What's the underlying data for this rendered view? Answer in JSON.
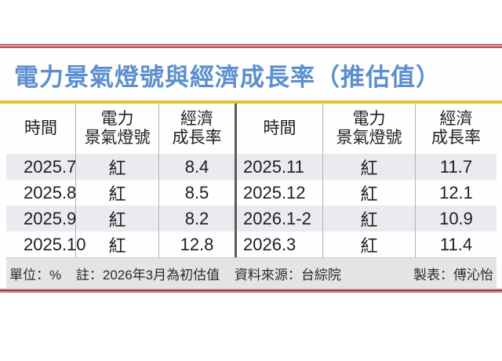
{
  "chart_data": {
    "type": "table",
    "title": "電力景氣燈號與經濟成長率（推估值）",
    "columns": [
      "時間",
      "電力景氣燈號",
      "經濟成長率"
    ],
    "rows": [
      [
        "2025.7",
        "紅",
        "8.4"
      ],
      [
        "2025.8",
        "紅",
        "8.5"
      ],
      [
        "2025.9",
        "紅",
        "8.2"
      ],
      [
        "2025.10",
        "紅",
        "12.8"
      ],
      [
        "2025.11",
        "紅",
        "11.7"
      ],
      [
        "2025.12",
        "紅",
        "12.1"
      ],
      [
        "2026.1-2",
        "紅",
        "10.9"
      ],
      [
        "2026.3",
        "紅",
        "11.4"
      ]
    ],
    "unit": "%",
    "note": "2026年3月為初估值",
    "source": "台綜院",
    "layout": "two side-by-side column groups, rows 0-3 left, rows 4-7 right"
  },
  "table_headers": {
    "time": "時間",
    "signal_line1": "電力",
    "signal_line2": "景氣燈號",
    "growth_line1": "經濟",
    "growth_line2": "成長率"
  },
  "footer": {
    "unit": "單位：%",
    "note": "註：2026年3月為初估值",
    "source": "資料來源：台綜院",
    "credit": "製表：傅沁怡"
  },
  "colors": {
    "title_blue": "#5b8fce",
    "rule_yellow": "#e5c32e",
    "stripe": "#e9ebf1",
    "footer_bg": "#e4e4e4",
    "border_red": "#a84250"
  }
}
